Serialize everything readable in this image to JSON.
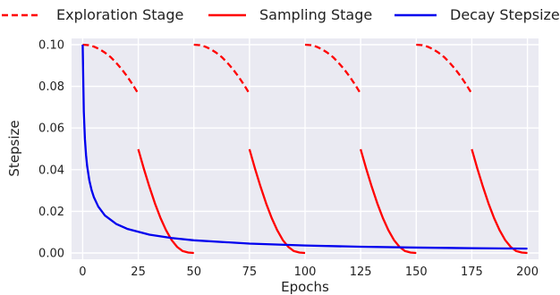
{
  "chart_data": {
    "type": "line",
    "title": "",
    "xlabel": "Epochs",
    "ylabel": "Stepsize",
    "xlim": [
      -5,
      205
    ],
    "ylim": [
      -0.003,
      0.103
    ],
    "xticks": [
      0,
      25,
      50,
      75,
      100,
      125,
      150,
      175,
      200
    ],
    "xtick_labels": [
      "0",
      "25",
      "50",
      "75",
      "100",
      "125",
      "150",
      "175",
      "200"
    ],
    "yticks": [
      0.0,
      0.02,
      0.04,
      0.06,
      0.08,
      0.1
    ],
    "ytick_labels": [
      "0.00",
      "0.02",
      "0.04",
      "0.06",
      "0.08",
      "0.10"
    ],
    "grid": true,
    "legend_position": "top",
    "background_color": "#EAEAF2",
    "grid_color": "#FFFFFF",
    "series": [
      {
        "name": "Exploration Stage",
        "color": "#FF0000",
        "style": "dashed",
        "segments": [
          {
            "x": [
              0,
              2.5,
              5,
              7.5,
              10,
              12.5,
              15,
              17.5,
              20,
              22.5,
              25
            ],
            "y": [
              0.1,
              0.0998,
              0.0991,
              0.0979,
              0.0962,
              0.0941,
              0.0914,
              0.0883,
              0.0848,
              0.0808,
              0.0765
            ]
          },
          {
            "x": [
              50,
              52.5,
              55,
              57.5,
              60,
              62.5,
              65,
              67.5,
              70,
              72.5,
              75
            ],
            "y": [
              0.1,
              0.0998,
              0.0991,
              0.0979,
              0.0962,
              0.0941,
              0.0914,
              0.0883,
              0.0848,
              0.0808,
              0.0765
            ]
          },
          {
            "x": [
              100,
              102.5,
              105,
              107.5,
              110,
              112.5,
              115,
              117.5,
              120,
              122.5,
              125
            ],
            "y": [
              0.1,
              0.0998,
              0.0991,
              0.0979,
              0.0962,
              0.0941,
              0.0914,
              0.0883,
              0.0848,
              0.0808,
              0.0765
            ]
          },
          {
            "x": [
              150,
              152.5,
              155,
              157.5,
              160,
              162.5,
              165,
              167.5,
              170,
              172.5,
              175
            ],
            "y": [
              0.1,
              0.0998,
              0.0991,
              0.0979,
              0.0962,
              0.0941,
              0.0914,
              0.0883,
              0.0848,
              0.0808,
              0.0765
            ]
          }
        ]
      },
      {
        "name": "Sampling Stage",
        "color": "#FF0000",
        "style": "solid",
        "segments": [
          {
            "x": [
              25,
              27.5,
              30,
              32.5,
              35,
              37.5,
              40,
              42.5,
              45,
              47.5,
              50
            ],
            "y": [
              0.0498,
              0.0405,
              0.0318,
              0.0238,
              0.0168,
              0.0109,
              0.0062,
              0.0029,
              0.0009,
              0.0002,
              0.0
            ]
          },
          {
            "x": [
              75,
              77.5,
              80,
              82.5,
              85,
              87.5,
              90,
              92.5,
              95,
              97.5,
              100
            ],
            "y": [
              0.0498,
              0.0405,
              0.0318,
              0.0238,
              0.0168,
              0.0109,
              0.0062,
              0.0029,
              0.0009,
              0.0002,
              0.0
            ]
          },
          {
            "x": [
              125,
              127.5,
              130,
              132.5,
              135,
              137.5,
              140,
              142.5,
              145,
              147.5,
              150
            ],
            "y": [
              0.0498,
              0.0405,
              0.0318,
              0.0238,
              0.0168,
              0.0109,
              0.0062,
              0.0029,
              0.0009,
              0.0002,
              0.0
            ]
          },
          {
            "x": [
              175,
              177.5,
              180,
              182.5,
              185,
              187.5,
              190,
              192.5,
              195,
              197.5,
              200
            ],
            "y": [
              0.0498,
              0.0405,
              0.0318,
              0.0238,
              0.0168,
              0.0109,
              0.0062,
              0.0029,
              0.0009,
              0.0002,
              0.0
            ]
          }
        ]
      },
      {
        "name": "Decay Stepsize",
        "color": "#0000EE",
        "style": "solid",
        "segments": [
          {
            "x": [
              0,
              0.5,
              1,
              1.5,
              2,
              3,
              4,
              5,
              7,
              10,
              15,
              20,
              30,
              40,
              50,
              75,
              100,
              125,
              150,
              175,
              200
            ],
            "y": [
              0.1,
              0.0679,
              0.0548,
              0.0471,
              0.0418,
              0.0348,
              0.0302,
              0.0269,
              0.0223,
              0.018,
              0.014,
              0.0116,
              0.0088,
              0.0072,
              0.0061,
              0.0045,
              0.0036,
              0.003,
              0.0026,
              0.0023,
              0.0021
            ]
          }
        ]
      }
    ]
  }
}
